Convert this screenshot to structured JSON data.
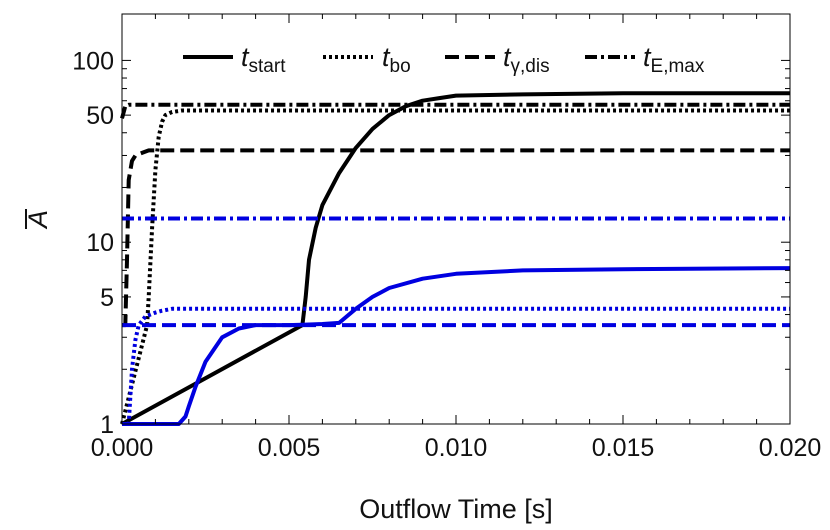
{
  "chart_data": {
    "type": "line",
    "title": "",
    "xlabel": "Outflow Time [s]",
    "ylabel": "A",
    "ylabel_decoration": "overbar",
    "xlim": [
      0.0,
      0.02
    ],
    "ylim": [
      1,
      180
    ],
    "yscale": "log",
    "grid": false,
    "legend_position": "top",
    "xticks": [
      0.0,
      0.005,
      0.01,
      0.015,
      0.02
    ],
    "xtick_labels": [
      "0.000",
      "0.005",
      "0.010",
      "0.015",
      "0.020"
    ],
    "yticks": [
      1,
      5,
      10,
      50,
      100
    ],
    "ytick_labels": [
      "1",
      "5",
      "10",
      "50",
      "100"
    ],
    "legend": [
      {
        "base": "t",
        "sub": "start",
        "style": "solid"
      },
      {
        "base": "t",
        "sub": "bo",
        "style": "dotted"
      },
      {
        "base": "t",
        "sub": "γ,dis",
        "style": "dashed"
      },
      {
        "base": "t",
        "sub": "E,max",
        "style": "dashdot"
      }
    ],
    "series": [
      {
        "color": "#000000",
        "style": "solid",
        "x": [
          0.0,
          0.0054,
          0.0055,
          0.0056,
          0.0058,
          0.006,
          0.0065,
          0.007,
          0.0075,
          0.008,
          0.0085,
          0.009,
          0.0095,
          0.01,
          0.012,
          0.015,
          0.02
        ],
        "y": [
          1,
          3.5,
          5,
          8,
          12,
          16,
          24,
          33,
          42,
          50,
          56,
          60,
          62,
          64,
          65,
          66,
          66
        ]
      },
      {
        "color": "#000000",
        "style": "dotted",
        "x": [
          0.0,
          0.00075,
          0.0008,
          0.0009,
          0.001,
          0.0011,
          0.0012,
          0.0013,
          0.0015,
          0.0018,
          0.002,
          0.005,
          0.01,
          0.015,
          0.02
        ],
        "y": [
          1,
          3.5,
          5,
          12,
          25,
          38,
          46,
          50,
          52,
          53,
          53,
          53,
          53,
          53,
          53
        ]
      },
      {
        "color": "#000000",
        "style": "dashed",
        "x": [
          0.0,
          0.0001,
          0.00015,
          0.0002,
          0.0003,
          0.0004,
          0.0006,
          0.0008,
          0.001,
          0.002,
          0.005,
          0.01,
          0.015,
          0.02
        ],
        "y": [
          3.5,
          3.5,
          8,
          22,
          28,
          30,
          31,
          32,
          32,
          32,
          32,
          32,
          32,
          32
        ]
      },
      {
        "color": "#000000",
        "style": "dashdot",
        "x": [
          0.0,
          0.0001,
          0.0002,
          0.0004,
          0.001,
          0.005,
          0.01,
          0.015,
          0.02
        ],
        "y": [
          48,
          56,
          57,
          57,
          57,
          57,
          57,
          57,
          57
        ]
      },
      {
        "color": "#0000e0",
        "style": "solid",
        "x": [
          0.0,
          0.0017,
          0.0019,
          0.002,
          0.0022,
          0.0025,
          0.003,
          0.0035,
          0.004,
          0.005,
          0.0055,
          0.006,
          0.0065,
          0.007,
          0.0075,
          0.008,
          0.009,
          0.01,
          0.012,
          0.015,
          0.02
        ],
        "y": [
          1,
          1,
          1.1,
          1.25,
          1.6,
          2.2,
          3.0,
          3.35,
          3.5,
          3.5,
          3.52,
          3.55,
          3.6,
          4.3,
          5.0,
          5.6,
          6.3,
          6.7,
          7.0,
          7.1,
          7.2
        ]
      },
      {
        "color": "#0000e0",
        "style": "dotted",
        "x": [
          0.0,
          0.0002,
          0.0003,
          0.0004,
          0.0005,
          0.0007,
          0.001,
          0.0012,
          0.0015,
          0.002,
          0.005,
          0.01,
          0.015,
          0.02
        ],
        "y": [
          1,
          1,
          2.0,
          2.9,
          3.5,
          3.9,
          4.1,
          4.2,
          4.3,
          4.3,
          4.3,
          4.3,
          4.3,
          4.3
        ]
      },
      {
        "color": "#0000e0",
        "style": "dashed",
        "x": [
          0.0,
          0.02
        ],
        "y": [
          3.5,
          3.5
        ]
      },
      {
        "color": "#0000e0",
        "style": "dashdot",
        "x": [
          0.0,
          0.02
        ],
        "y": [
          13.5,
          13.5
        ]
      }
    ]
  }
}
